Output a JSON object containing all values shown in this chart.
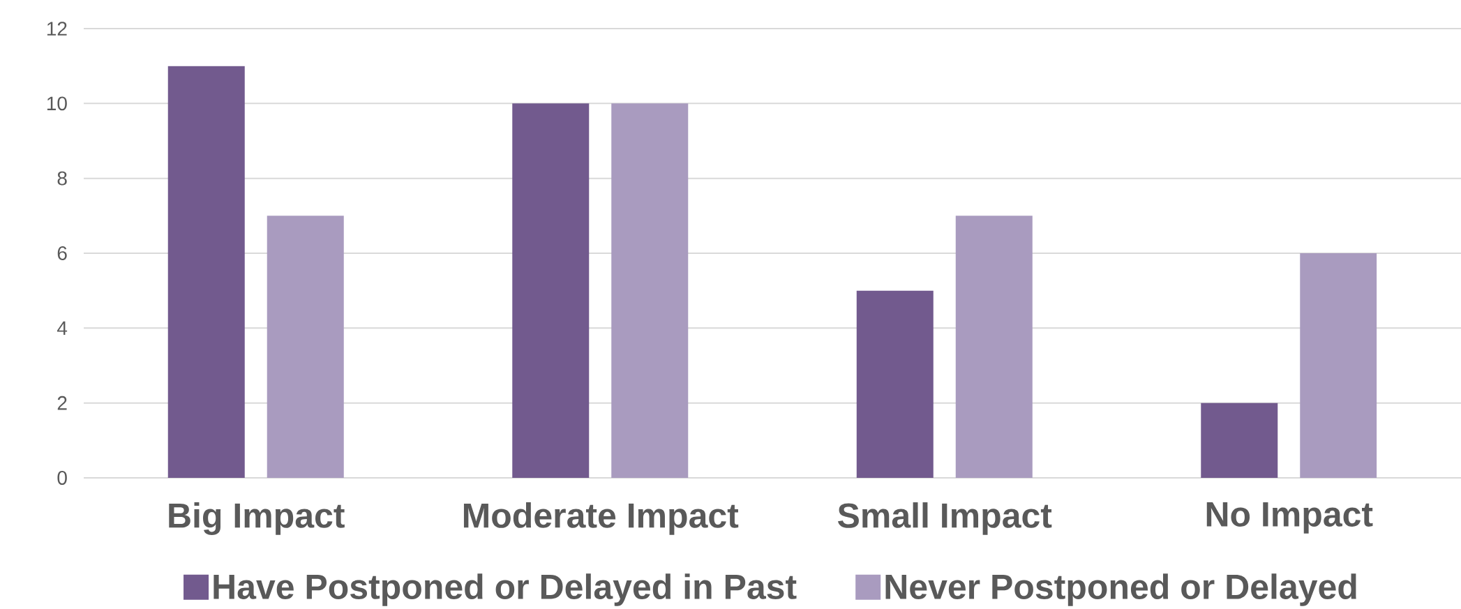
{
  "chart_data": {
    "type": "bar",
    "categories": [
      "Big Impact",
      "Moderate Impact",
      "Small Impact",
      "No Impact"
    ],
    "series": [
      {
        "name": "Have Postponed or Delayed in Past",
        "color": "#725a8e",
        "values": [
          11,
          10,
          5,
          2
        ]
      },
      {
        "name": "Never Postponed or Delayed",
        "color": "#a99bbf",
        "values": [
          7,
          10,
          7,
          6
        ]
      }
    ],
    "ylim": [
      0,
      12
    ],
    "yticks": [
      0,
      2,
      4,
      6,
      8,
      10,
      12
    ],
    "grid": "y",
    "legend": "bottom"
  }
}
